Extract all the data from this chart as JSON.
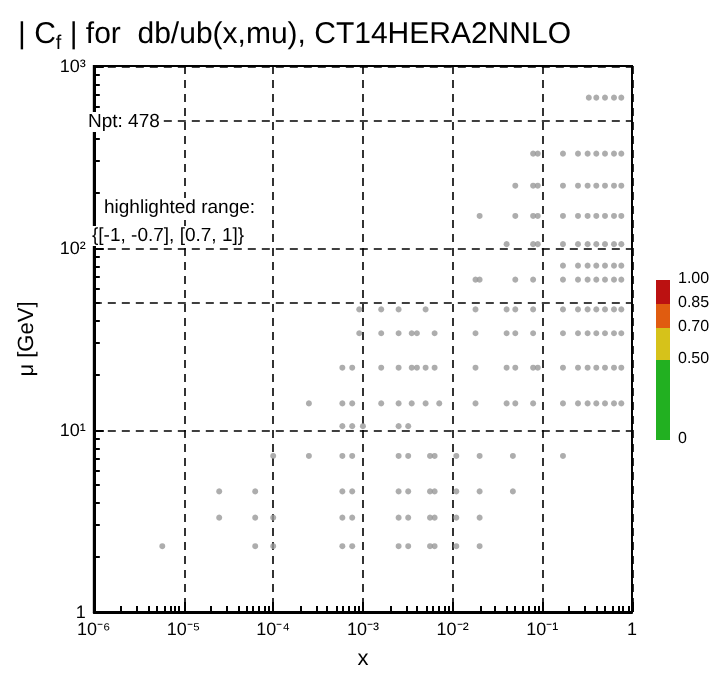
{
  "chart_data": {
    "type": "scatter",
    "title": "| C$_{f}$ | for  db/ub(x,mu), CT14HERA2NNLO",
    "xlabel": "x",
    "ylabel": "μ [GeV]",
    "annotations": [
      "Npt: 478",
      "highlighted range:",
      "{[-1, -0.7], [0.7, 1]}"
    ],
    "log": "xy",
    "grid": true,
    "marker": "circle",
    "xlim": [
      1e-06,
      1
    ],
    "xticks": [
      {
        "value": 1e-06,
        "label": "10⁻⁶"
      },
      {
        "value": 1e-05,
        "label": "10⁻⁵"
      },
      {
        "value": 0.0001,
        "label": "10⁻⁴"
      },
      {
        "value": 0.001,
        "label": "10⁻³"
      },
      {
        "value": 0.01,
        "label": "10⁻²"
      },
      {
        "value": 0.1,
        "label": "10⁻¹"
      },
      1
    ],
    "ylim": [
      1,
      1000
    ],
    "yticks": [
      1,
      {
        "value": 10,
        "label": "10¹"
      },
      {
        "value": 100,
        "label": "10²"
      },
      {
        "value": 1000,
        "label": "10³"
      }
    ],
    "ref_lines": [
      {
        "axis": "y",
        "value": 50,
        "line_style": "dashed"
      },
      {
        "axis": "y",
        "value": 500,
        "line_style": "dashed"
      }
    ],
    "clim": [
      0,
      1
    ],
    "cticks": [
      0,
      {
        "value": 0.5,
        "label": "0.50"
      },
      {
        "value": 0.7,
        "label": "0.70"
      },
      {
        "value": 0.85,
        "label": "0.85"
      },
      {
        "value": 1,
        "label": "1.00"
      }
    ],
    "series": [
      {
        "color": "#999999",
        "x": [
          5.8e-06,
          6.3e-05,
          0.0001,
          0.00059,
          0.00076,
          0.0025,
          0.0032,
          0.0056,
          0.0063,
          0.011,
          0.02,
          2.5e-05,
          6.3e-05,
          0.0001,
          0.00059,
          0.00076,
          0.0025,
          0.0032,
          0.0056,
          0.0063,
          0.011,
          0.02,
          2.5e-05,
          6.3e-05,
          0.00059,
          0.00076,
          0.0025,
          0.0032,
          0.0056,
          0.0063,
          0.011,
          0.02,
          0.047,
          0.0001,
          0.00025,
          0.00059,
          0.00076,
          0.0025,
          0.0032,
          0.0056,
          0.0063,
          0.011,
          0.02,
          0.047,
          0.17,
          0.00059,
          0.00076,
          0.001,
          0.0025,
          0.0032,
          0.00025,
          0.00059,
          0.00076,
          0.0016,
          0.0025,
          0.0035,
          0.005,
          0.0071,
          0.018,
          0.04,
          0.05,
          0.079,
          0.17,
          0.25,
          0.32,
          0.4,
          0.5,
          0.63,
          0.76,
          0.00059,
          0.00076,
          0.0016,
          0.0025,
          0.0035,
          0.004,
          0.005,
          0.0063,
          0.018,
          0.04,
          0.05,
          0.079,
          0.089,
          0.17,
          0.25,
          0.32,
          0.4,
          0.5,
          0.63,
          0.76,
          0.00091,
          0.0016,
          0.0025,
          0.0035,
          0.004,
          0.0063,
          0.018,
          0.04,
          0.05,
          0.079,
          0.17,
          0.25,
          0.32,
          0.4,
          0.5,
          0.63,
          0.76,
          0.00091,
          0.0016,
          0.0025,
          0.005,
          0.018,
          0.04,
          0.05,
          0.079,
          0.17,
          0.25,
          0.32,
          0.4,
          0.5,
          0.63,
          0.76,
          0.018,
          0.02,
          0.05,
          0.079,
          0.17,
          0.25,
          0.32,
          0.4,
          0.5,
          0.63,
          0.76,
          0.17,
          0.25,
          0.32,
          0.4,
          0.5,
          0.63,
          0.76,
          0.04,
          0.079,
          0.089,
          0.17,
          0.25,
          0.32,
          0.4,
          0.5,
          0.63,
          0.76,
          0.02,
          0.05,
          0.079,
          0.089,
          0.17,
          0.25,
          0.32,
          0.4,
          0.5,
          0.63,
          0.76,
          0.05,
          0.079,
          0.089,
          0.17,
          0.25,
          0.32,
          0.4,
          0.5,
          0.63,
          0.76,
          0.079,
          0.089,
          0.17,
          0.25,
          0.32,
          0.4,
          0.5,
          0.63,
          0.76,
          0.33,
          0.4,
          0.5,
          0.63,
          0.76
        ],
        "values": [
          2.3,
          2.3,
          2.3,
          2.3,
          2.3,
          2.3,
          2.3,
          2.3,
          2.3,
          2.3,
          2.3,
          3.3,
          3.3,
          3.3,
          3.3,
          3.3,
          3.3,
          3.3,
          3.3,
          3.3,
          3.3,
          3.3,
          4.6,
          4.6,
          4.6,
          4.6,
          4.6,
          4.6,
          4.6,
          4.6,
          4.6,
          4.6,
          4.6,
          7.2,
          7.2,
          7.2,
          7.2,
          7.2,
          7.2,
          7.2,
          7.2,
          7.2,
          7.2,
          7.2,
          7.2,
          10.5,
          10.5,
          10.5,
          10.5,
          10.5,
          14,
          14,
          14,
          14,
          14,
          14,
          14,
          14,
          14,
          14,
          14,
          14,
          14,
          14,
          14,
          14,
          14,
          14,
          14,
          22,
          22,
          22,
          22,
          22,
          22,
          22,
          22,
          22,
          22,
          22,
          22,
          22,
          22,
          22,
          22,
          22,
          22,
          22,
          22,
          34,
          34,
          34,
          34,
          34,
          34,
          34,
          34,
          34,
          34,
          34,
          34,
          34,
          34,
          34,
          34,
          34,
          46,
          46,
          46,
          46,
          46,
          46,
          46,
          46,
          46,
          46,
          46,
          46,
          46,
          46,
          46,
          67,
          67,
          67,
          67,
          67,
          67,
          67,
          67,
          67,
          67,
          67,
          80,
          80,
          80,
          80,
          80,
          80,
          80,
          105,
          105,
          105,
          105,
          105,
          105,
          105,
          105,
          105,
          105,
          150,
          150,
          150,
          150,
          150,
          150,
          150,
          150,
          150,
          150,
          150,
          220,
          220,
          220,
          220,
          220,
          220,
          220,
          220,
          220,
          220,
          330,
          330,
          330,
          330,
          330,
          330,
          330,
          330,
          330,
          670,
          670,
          670,
          670,
          670
        ]
      }
    ]
  }
}
